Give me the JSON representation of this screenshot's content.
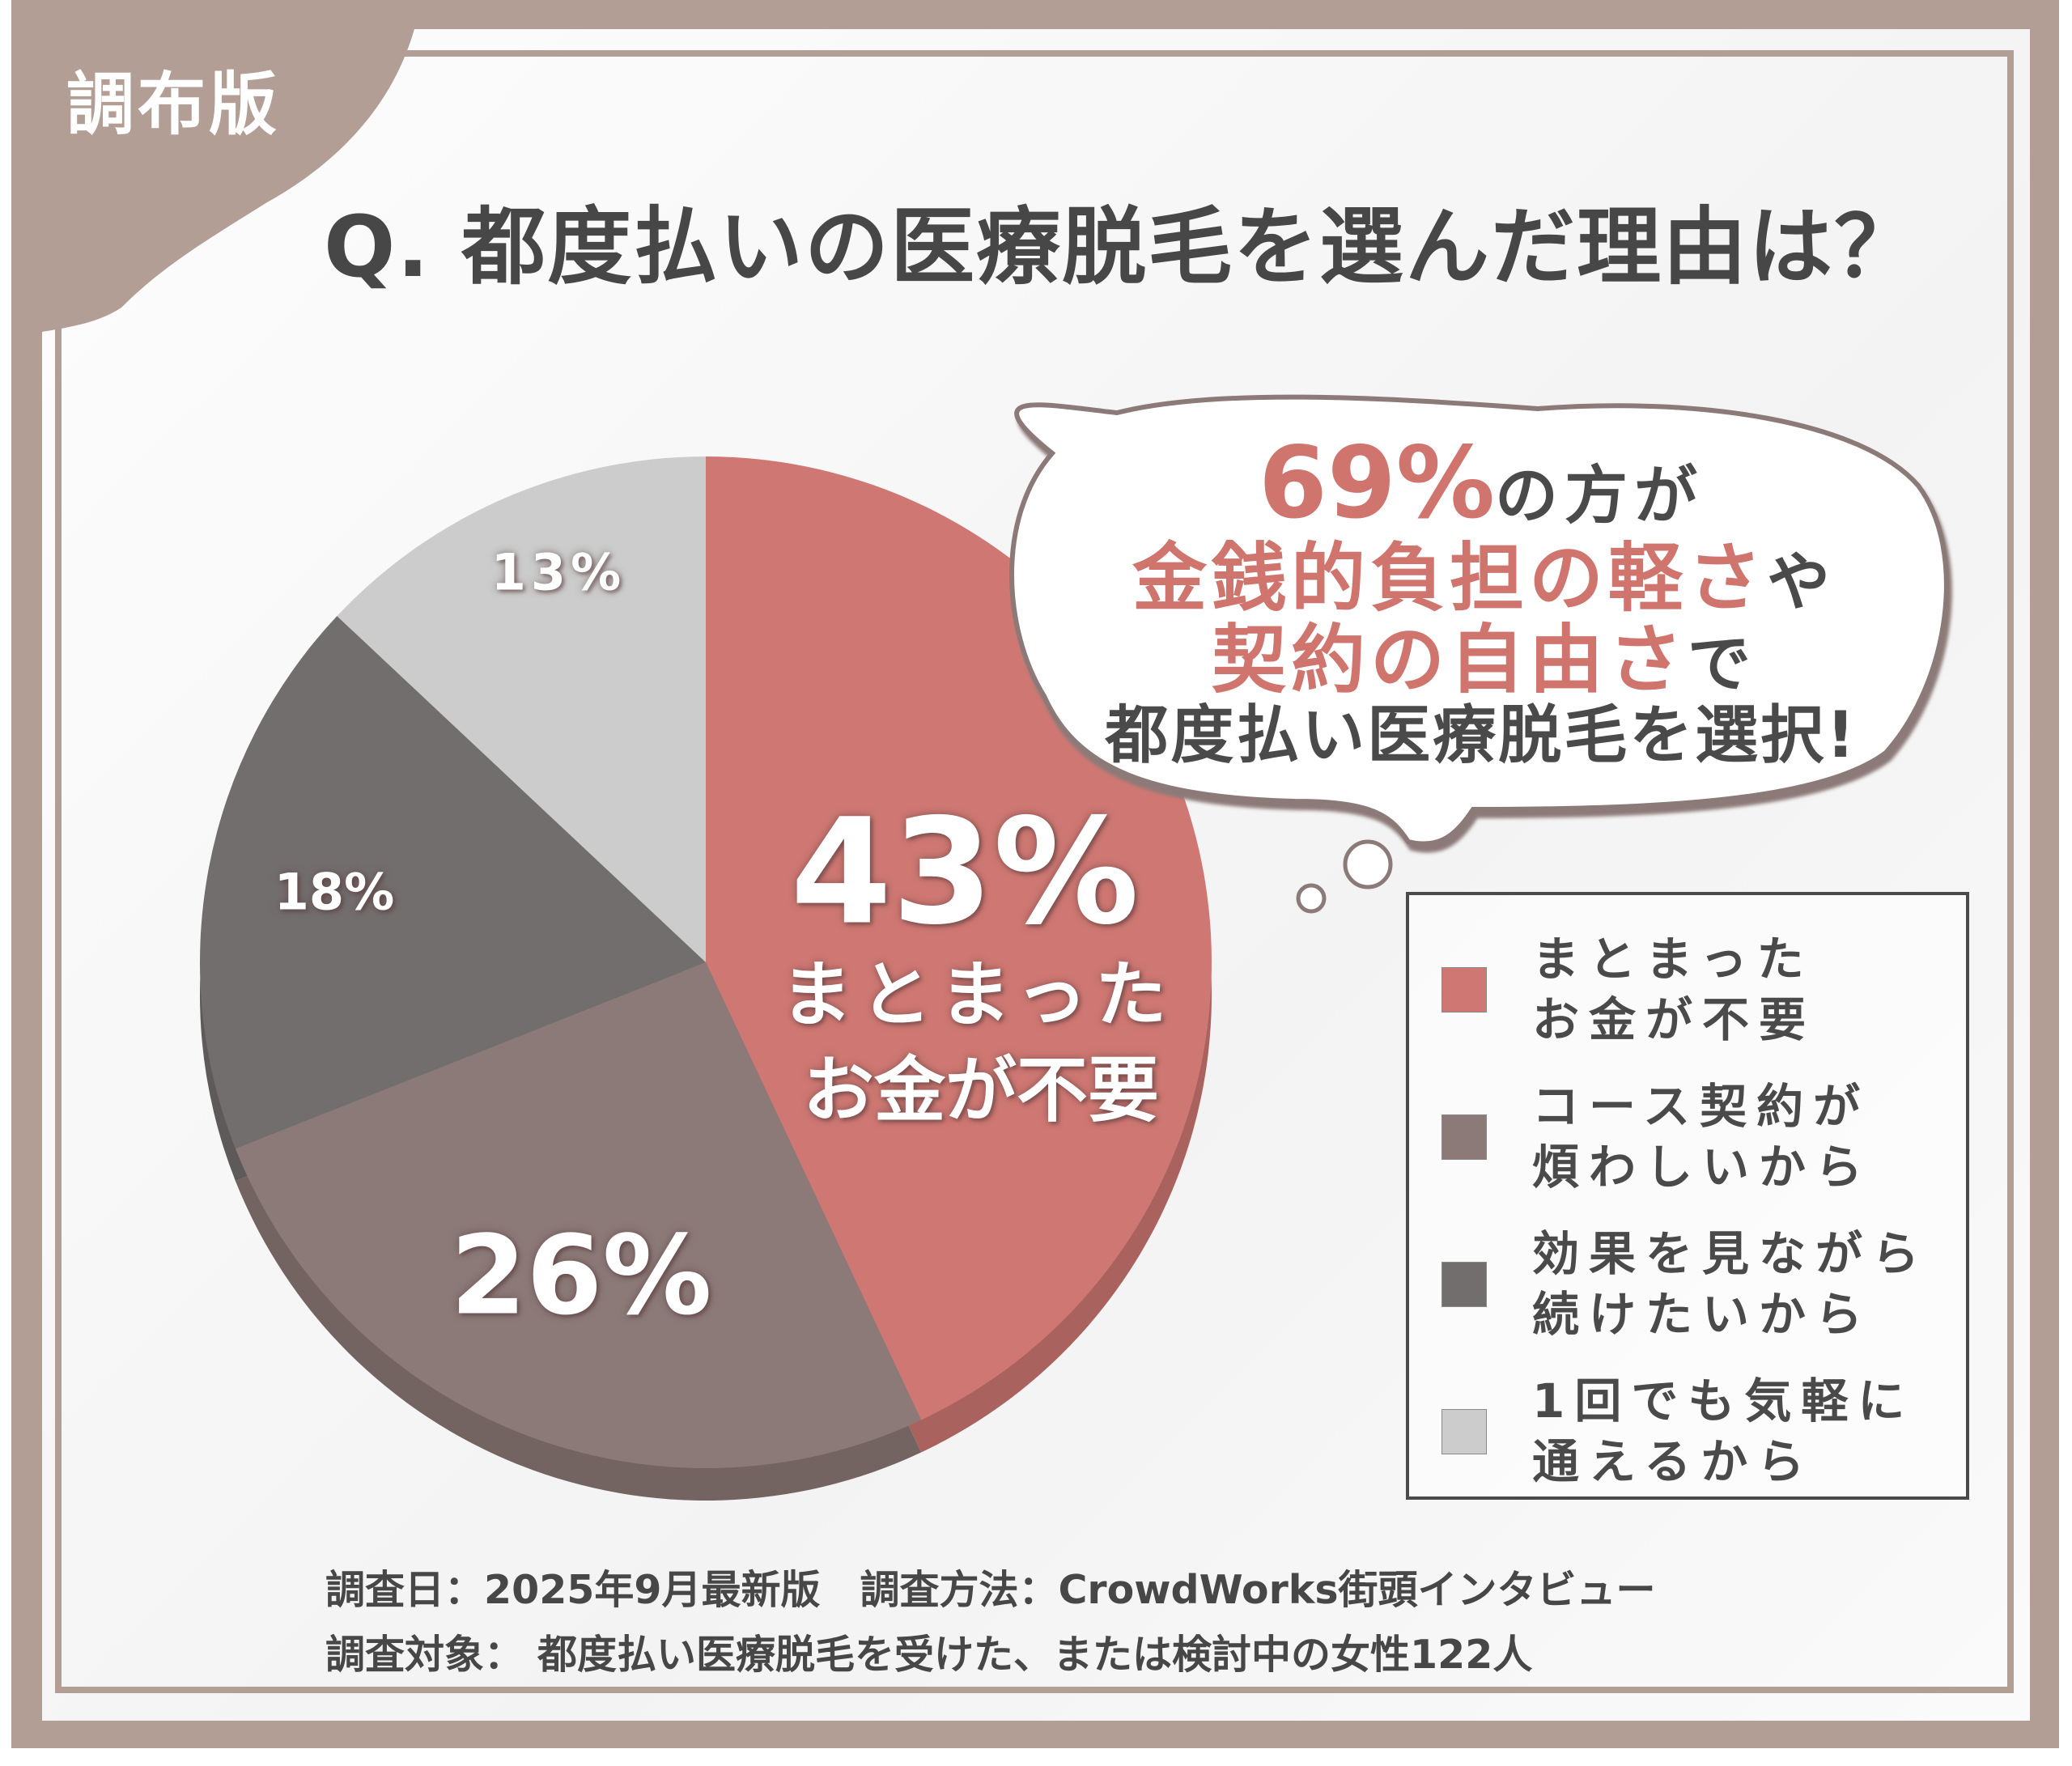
{
  "badge": "調布版",
  "title": "Q. 都度払いの医療脱毛を選んだ理由は？",
  "callout": {
    "line1_highlight": "69%",
    "line1_rest": "の方が",
    "line2_highlight": "金銭的負担の軽さ",
    "line2_rest": "や",
    "line3_highlight": "契約の自由さ",
    "line3_rest": "で",
    "line4": "都度払い医療脱毛を選択!"
  },
  "chart_data": {
    "type": "pie",
    "title": "Q. 都度払いの医療脱毛を選んだ理由は？",
    "start": "top",
    "direction": "clockwise",
    "slices": [
      {
        "label": "まとまったお金が不要",
        "legend_line1": "まとまった",
        "legend_line2": "お金が不要",
        "value": 43,
        "display": "43%",
        "color": "#cf7873"
      },
      {
        "label": "コース契約が煩わしいから",
        "legend_line1": "コース契約が",
        "legend_line2": "煩わしいから",
        "value": 26,
        "display": "26%",
        "color": "#8c7a78"
      },
      {
        "label": "効果を見ながら続けたいから",
        "legend_line1": "効果を見ながら",
        "legend_line2": "続けたいから",
        "value": 18,
        "display": "18%",
        "color": "#736e6e"
      },
      {
        "label": "1回でも気軽に通えるから",
        "legend_line1": "1回でも気軽に",
        "legend_line2": "通えるから",
        "value": 13,
        "display": "13%",
        "color": "#cccccc"
      }
    ],
    "inner_label_line1": "まとまった",
    "inner_label_line2": "お金が不要",
    "legend_position": "right"
  },
  "footer": {
    "line1": "調査日：2025年9月最新版　調査方法：CrowdWorks街頭インタビュー",
    "line2": "調査対象： 都度払い医療脱毛を受けた、または検討中の女性122人"
  },
  "colors": {
    "frame": "#b39e96",
    "accent": "#d0746e",
    "text": "#4a4a4a"
  }
}
